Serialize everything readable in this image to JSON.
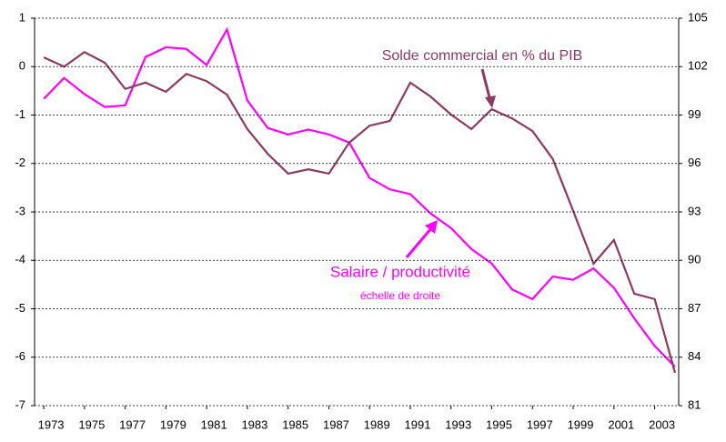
{
  "chart_data": {
    "type": "line",
    "x": [
      1973,
      1974,
      1975,
      1976,
      1977,
      1978,
      1979,
      1980,
      1981,
      1982,
      1983,
      1984,
      1985,
      1986,
      1987,
      1988,
      1989,
      1990,
      1991,
      1992,
      1993,
      1994,
      1995,
      1996,
      1997,
      1998,
      1999,
      2000,
      2001,
      2002,
      2003,
      2004
    ],
    "xlim": [
      1972.55,
      2004.18
    ],
    "xticks": [
      1973,
      1975,
      1977,
      1979,
      1981,
      1983,
      1985,
      1987,
      1989,
      1991,
      1993,
      1995,
      1997,
      1999,
      2001,
      2003
    ],
    "ylim": [
      -7,
      1
    ],
    "yticks": [
      1,
      0,
      -1,
      -2,
      -3,
      -4,
      -5,
      -6,
      -7
    ],
    "y2lim": [
      81,
      105
    ],
    "y2ticks": [
      105,
      102,
      99,
      96,
      93,
      90,
      87,
      84,
      81
    ],
    "grid": true,
    "series": [
      {
        "name": "Solde commercial en % du PIB",
        "color": "#8b3a62",
        "axis": "y",
        "values": [
          0.19,
          0.0,
          0.3,
          0.08,
          -0.46,
          -0.33,
          -0.52,
          -0.15,
          -0.3,
          -0.58,
          -1.29,
          -1.8,
          -2.21,
          -2.12,
          -2.21,
          -1.57,
          -1.22,
          -1.12,
          -0.33,
          -0.62,
          -0.99,
          -1.29,
          -0.88,
          -1.07,
          -1.33,
          -1.91,
          -2.98,
          -4.07,
          -3.58,
          -4.69,
          -4.8,
          -6.32
        ]
      },
      {
        "name": "Salaire / productivité",
        "color": "#ff00ff",
        "axis": "y2",
        "values": [
          100.0,
          101.3,
          100.3,
          99.5,
          99.6,
          102.6,
          103.2,
          103.1,
          102.1,
          104.3,
          99.9,
          98.2,
          97.8,
          98.1,
          97.8,
          97.3,
          95.1,
          94.4,
          94.1,
          92.9,
          92.0,
          90.7,
          89.8,
          88.2,
          87.6,
          89.0,
          88.8,
          89.5,
          88.3,
          86.4,
          84.7,
          83.4
        ]
      }
    ],
    "annotations": [
      "échelle de droite"
    ]
  }
}
